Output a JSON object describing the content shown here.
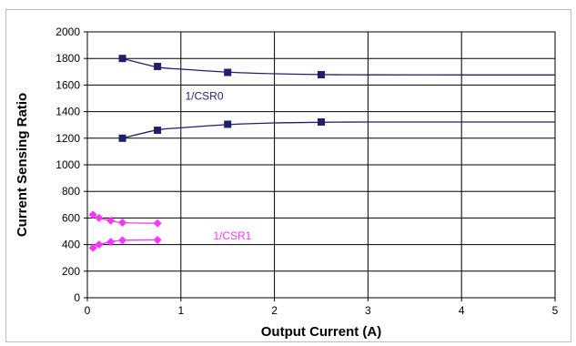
{
  "chart_data": {
    "type": "scatter",
    "xlabel": "Output Current (A)",
    "ylabel": "Current Sensing Ratio",
    "xlim": [
      0,
      5
    ],
    "ylim": [
      0,
      2000
    ],
    "x_ticks": [
      "0",
      "1",
      "2",
      "3",
      "4",
      "5"
    ],
    "y_ticks": [
      "0",
      "200",
      "400",
      "600",
      "800",
      "1000",
      "1200",
      "1400",
      "1600",
      "1800",
      "2000"
    ],
    "grid": true,
    "plot_background": "#ffffff",
    "series": [
      {
        "group": "CSR0-upper",
        "color": "#1f1f6e",
        "marker": "square",
        "points": [
          [
            0.375,
            1800
          ],
          [
            0.75,
            1740
          ],
          [
            1.5,
            1695
          ],
          [
            2.5,
            1678
          ]
        ],
        "fit": [
          [
            0.375,
            1800
          ],
          [
            0.75,
            1735
          ],
          [
            1.0,
            1720
          ],
          [
            1.5,
            1697
          ],
          [
            2.0,
            1685
          ],
          [
            2.5,
            1679
          ],
          [
            3.0,
            1677
          ],
          [
            4.0,
            1676
          ],
          [
            5.0,
            1676
          ]
        ]
      },
      {
        "group": "CSR0-lower",
        "color": "#1f1f6e",
        "marker": "square",
        "points": [
          [
            0.375,
            1200
          ],
          [
            0.75,
            1260
          ],
          [
            1.5,
            1305
          ],
          [
            2.5,
            1322
          ]
        ],
        "fit": [
          [
            0.375,
            1200
          ],
          [
            0.75,
            1262
          ],
          [
            1.0,
            1278
          ],
          [
            1.5,
            1302
          ],
          [
            2.0,
            1315
          ],
          [
            2.5,
            1320
          ],
          [
            3.0,
            1322
          ],
          [
            4.0,
            1322
          ],
          [
            5.0,
            1322
          ]
        ]
      },
      {
        "group": "CSR1-upper",
        "color": "#ff33ff",
        "marker": "diamond",
        "points": [
          [
            0.06,
            625
          ],
          [
            0.125,
            600
          ],
          [
            0.25,
            580
          ],
          [
            0.375,
            565
          ],
          [
            0.75,
            560
          ]
        ],
        "fit": [
          [
            0.06,
            625
          ],
          [
            0.125,
            600
          ],
          [
            0.25,
            580
          ],
          [
            0.375,
            565
          ],
          [
            0.75,
            560
          ]
        ]
      },
      {
        "group": "CSR1-lower",
        "color": "#ff33ff",
        "marker": "diamond",
        "points": [
          [
            0.06,
            375
          ],
          [
            0.125,
            400
          ],
          [
            0.25,
            420
          ],
          [
            0.375,
            432
          ],
          [
            0.75,
            435
          ]
        ],
        "fit": [
          [
            0.06,
            375
          ],
          [
            0.125,
            400
          ],
          [
            0.25,
            420
          ],
          [
            0.375,
            432
          ],
          [
            0.75,
            435
          ]
        ]
      }
    ],
    "annotations": [
      {
        "text": "1/CSR0",
        "x": 1.25,
        "y": 1490,
        "color": "#1f1f6e"
      },
      {
        "text": "1/CSR1",
        "x": 1.55,
        "y": 440,
        "color": "#ff33ff"
      }
    ]
  }
}
